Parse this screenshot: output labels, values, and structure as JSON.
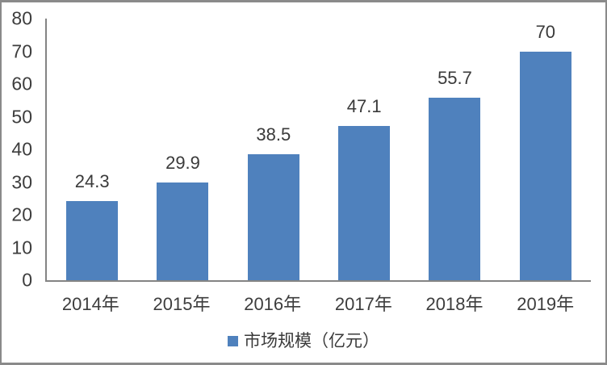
{
  "chart_data": {
    "type": "bar",
    "title": "",
    "categories": [
      "2014年",
      "2015年",
      "2016年",
      "2017年",
      "2018年",
      "2019年"
    ],
    "values": [
      24.3,
      29.9,
      38.5,
      47.1,
      55.7,
      70
    ],
    "data_labels": [
      "24.3",
      "29.9",
      "38.5",
      "47.1",
      "55.7",
      "70"
    ],
    "xlabel": "",
    "ylabel": "",
    "ylim": [
      0,
      80
    ],
    "yticks": [
      0,
      10,
      20,
      30,
      40,
      50,
      60,
      70,
      80
    ],
    "grid": false,
    "legend": {
      "label": "市场规模（亿元）",
      "position": "bottom"
    },
    "colors": {
      "bar": "#4f81bd",
      "axis": "#848484",
      "text": "#3d3d3d",
      "frame_border": "#8a8a8a"
    }
  }
}
